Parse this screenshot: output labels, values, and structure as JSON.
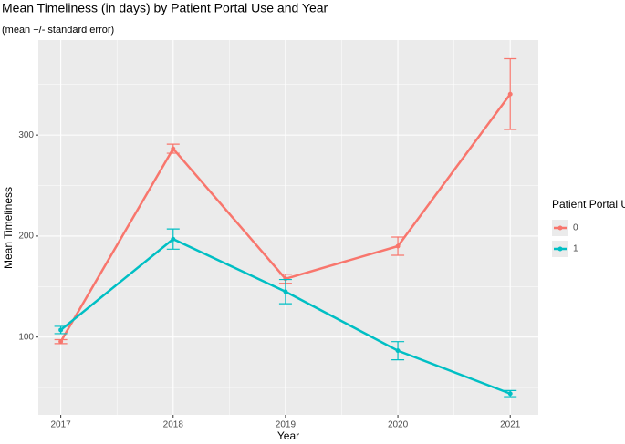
{
  "chart_data": {
    "type": "line",
    "title": "Mean Timeliness (in days) by Patient Portal Use and Year",
    "subtitle": "(mean +/- standard error)",
    "x_label": "Year",
    "y_label": "Mean Timeliness",
    "legend_title": "Patient Portal Use",
    "legend_position": "right",
    "x": [
      2017,
      2018,
      2019,
      2020,
      2021
    ],
    "series": [
      {
        "name": "0",
        "color": "#F8766D",
        "values": [
          95.5,
          286.5,
          157.7,
          190,
          340.5
        ],
        "errors": [
          2,
          4.5,
          4.5,
          9,
          35
        ]
      },
      {
        "name": "1",
        "color": "#00BFC4",
        "values": [
          107,
          197,
          145,
          86.5,
          44
        ],
        "errors": [
          3.6,
          10,
          12,
          9,
          3
        ]
      }
    ],
    "xlim": [
      2016.8,
      2021.25
    ],
    "xticks": [
      2017,
      2018,
      2019,
      2020,
      2021
    ],
    "ylim": [
      23,
      394
    ],
    "yticks": [
      100,
      200,
      300
    ],
    "grid": true,
    "minor_grid": true,
    "panel_color": "#EBEBEB"
  }
}
